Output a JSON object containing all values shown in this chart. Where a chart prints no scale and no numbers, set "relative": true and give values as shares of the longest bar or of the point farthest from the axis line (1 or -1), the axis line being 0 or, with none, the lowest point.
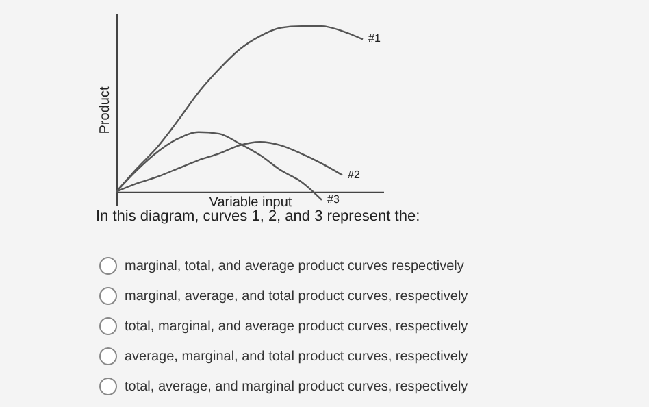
{
  "chart_data": {
    "type": "line",
    "relative": true,
    "xlabel": "Variable input",
    "ylabel": "Product",
    "categories": [
      null,
      null,
      null,
      null,
      null,
      null,
      null,
      null,
      null,
      null,
      null,
      null,
      null,
      null
    ],
    "series": [
      {
        "name": "#1",
        "color": "#555555",
        "values": [
          0,
          0.14,
          0.27,
          0.43,
          0.6,
          0.74,
          0.86,
          0.94,
          0.99,
          1.0,
          1.0,
          0.97,
          0.92,
          null
        ]
      },
      {
        "name": "#2",
        "color": "#555555",
        "values": [
          0,
          0.05,
          0.09,
          0.14,
          0.19,
          0.23,
          0.28,
          0.3,
          0.28,
          0.23,
          0.17,
          0.1,
          null,
          null
        ]
      },
      {
        "name": "#3",
        "color": "#555555",
        "values": [
          0,
          0.13,
          0.24,
          0.32,
          0.36,
          0.35,
          0.29,
          0.22,
          0.13,
          0.06,
          -0.05,
          null,
          null,
          null
        ]
      }
    ],
    "grid": false,
    "marker": "none",
    "line_style": "solid",
    "annotations": [
      "In this diagram, curves 1, 2, and 3 represent the:",
      "marginal, total, and average product curves respectively",
      "marginal, average, and total product curves, respectively",
      "total, marginal, and average product curves, respectively",
      "average, marginal, and total product curves, respectively",
      "total, average, and marginal product curves, respectively"
    ]
  }
}
